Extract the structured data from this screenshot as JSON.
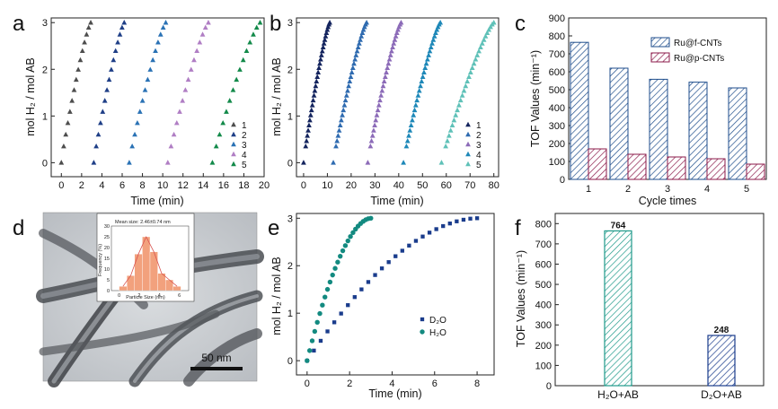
{
  "figure": {
    "panels": [
      "a",
      "b",
      "c",
      "d",
      "e",
      "f"
    ]
  },
  "chart_data": [
    {
      "id": "a",
      "type": "scatter",
      "title": "",
      "xlabel": "Time (min)",
      "ylabel": "mol H₂ / mol AB",
      "xlim": [
        -1,
        20
      ],
      "ylim": [
        -0.3,
        3.1
      ],
      "xticks": [
        0,
        2,
        4,
        6,
        8,
        10,
        12,
        14,
        16,
        18,
        20
      ],
      "yticks": [
        0,
        1,
        2,
        3
      ],
      "legend": "bottom-right",
      "marker": "triangle",
      "series": [
        {
          "name": "1",
          "color": "#4d4d4d",
          "t_start": 0.0,
          "duration": 2.9
        },
        {
          "name": "2",
          "color": "#1f3f87",
          "t_start": 3.2,
          "duration": 3.0
        },
        {
          "name": "3",
          "color": "#2a72b5",
          "t_start": 6.7,
          "duration": 3.6
        },
        {
          "name": "4",
          "color": "#b07ec4",
          "t_start": 10.5,
          "duration": 4.0
        },
        {
          "name": "5",
          "color": "#138a4a",
          "t_start": 14.9,
          "duration": 4.7
        }
      ]
    },
    {
      "id": "b",
      "type": "scatter",
      "title": "",
      "xlabel": "Time (min)",
      "ylabel": "mol H₂ / mol AB",
      "xlim": [
        -3,
        82
      ],
      "ylim": [
        -0.3,
        3.1
      ],
      "xticks": [
        0,
        10,
        20,
        30,
        40,
        50,
        60,
        70,
        80
      ],
      "yticks": [
        0,
        1,
        2,
        3
      ],
      "legend": "bottom-right",
      "marker": "triangle",
      "series": [
        {
          "name": "1",
          "color": "#14245e",
          "t_start": 0.0,
          "duration": 11.0
        },
        {
          "name": "2",
          "color": "#2f6bb0",
          "t_start": 12.5,
          "duration": 14.0
        },
        {
          "name": "3",
          "color": "#8c6bb8",
          "t_start": 27.0,
          "duration": 14.0
        },
        {
          "name": "4",
          "color": "#1e88b8",
          "t_start": 42.0,
          "duration": 15.5
        },
        {
          "name": "5",
          "color": "#5fc1b8",
          "t_start": 58.0,
          "duration": 22.0
        }
      ]
    },
    {
      "id": "c",
      "type": "bar",
      "title": "",
      "xlabel": "Cycle times",
      "ylabel": "TOF Values (min⁻¹)",
      "ylim": [
        0,
        900
      ],
      "yticks": [
        0,
        100,
        200,
        300,
        400,
        500,
        600,
        700,
        800,
        900
      ],
      "categories": [
        "1",
        "2",
        "3",
        "4",
        "5"
      ],
      "legend": "top-right",
      "series": [
        {
          "name": "Ru@f-CNTs",
          "color": "#1f4e8c",
          "values": [
            764,
            620,
            558,
            542,
            510
          ]
        },
        {
          "name": "Ru@p-CNTs",
          "color": "#8b1a4a",
          "values": [
            170,
            140,
            125,
            115,
            85
          ]
        }
      ]
    },
    {
      "id": "d",
      "type": "bar",
      "title": "Mean size: 2.46±0.74 nm",
      "xlabel": "Particle Size (nm)",
      "ylabel": "Frequency (%)",
      "ylim": [
        0,
        30
      ],
      "yticks": [
        0,
        5,
        10,
        15,
        20,
        25,
        30
      ],
      "categories": [
        "0.75",
        "1.25",
        "1.75",
        "2.25",
        "2.75",
        "3.25",
        "3.75",
        "4.25"
      ],
      "values": [
        2,
        7,
        17,
        25,
        18,
        8,
        5,
        2
      ],
      "color": "#f08a5d",
      "scale_bar": "50 nm"
    },
    {
      "id": "e",
      "type": "scatter",
      "title": "",
      "xlabel": "Time (min)",
      "ylabel": "mol H₂ / mol AB",
      "xlim": [
        -0.5,
        8.8
      ],
      "ylim": [
        -0.3,
        3.1
      ],
      "xticks": [
        0,
        2,
        4,
        6,
        8
      ],
      "yticks": [
        0,
        1,
        2,
        3
      ],
      "legend": "middle-right",
      "series": [
        {
          "name": "D₂O",
          "color": "#1a3c8c",
          "marker": "square",
          "t_start": 0.0,
          "duration": 8.0,
          "points": 26,
          "curve": "concave"
        },
        {
          "name": "H₂O",
          "color": "#138a80",
          "marker": "circle",
          "t_start": 0.0,
          "duration": 3.0,
          "points": 26,
          "curve": "concave"
        }
      ]
    },
    {
      "id": "f",
      "type": "bar",
      "title": "",
      "xlabel": "",
      "ylabel": "TOF Values (min⁻¹)",
      "ylim": [
        0,
        850
      ],
      "yticks": [
        0,
        100,
        200,
        300,
        400,
        500,
        600,
        700,
        800
      ],
      "categories": [
        "H₂O+AB",
        "D₂O+AB"
      ],
      "values": [
        764,
        248
      ],
      "data_labels": [
        "764",
        "248"
      ],
      "colors": [
        "#1f9a8a",
        "#1a3c8c"
      ]
    }
  ]
}
